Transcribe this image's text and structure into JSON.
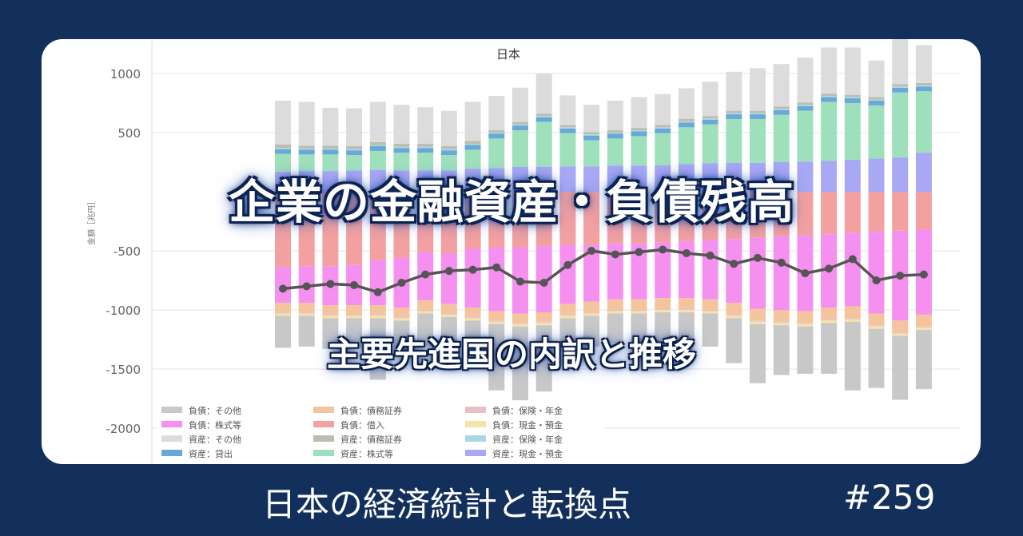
{
  "banner": {
    "main_title": "企業の金融資産・負債残高",
    "subtitle": "主要先進国の内訳と推移",
    "series_name": "日本の経済統計と転換点",
    "episode_number": "#259"
  },
  "colors": {
    "background": "#13305d",
    "card": "#ffffff",
    "line": "#555555",
    "series": {
      "負債：その他": "#c8c8c8",
      "負債：債務証券": "#f4c49e",
      "負債：保険・年金": "#e8c0c8",
      "負債：株式等": "#f590f0",
      "負債：借入": "#f2a0a0",
      "負債：現金・預金": "#f6e3a6",
      "資産：その他": "#dcdcdc",
      "資産：債務証券": "#bcbcb0",
      "資産：保険・年金": "#a8d8e8",
      "資産：貸出": "#6aa8d8",
      "資産：株式等": "#9fe0bc",
      "資産：現金・預金": "#a8a8f4"
    }
  },
  "chart_data": {
    "type": "bar",
    "stacked": true,
    "title": "日本",
    "ylabel": "金額［兆円］",
    "ylim": [
      -2000,
      1250
    ],
    "yticks": [
      1000,
      500,
      -500,
      -1000,
      -1500,
      -2000
    ],
    "grid": true,
    "legend_position": "bottom-left",
    "legend": [
      "負債：その他",
      "負債：債務証券",
      "負債：保険・年金",
      "負債：株式等",
      "負債：借入",
      "負債：現金・預金",
      "資産：その他",
      "資産：債務証券",
      "資産：保険・年金",
      "資産：貸出",
      "資産：株式等",
      "資産：現金・預金"
    ],
    "asset_series": [
      {
        "name": "資産：現金・預金",
        "values": [
          170,
          175,
          175,
          180,
          185,
          180,
          180,
          180,
          195,
          200,
          210,
          210,
          215,
          215,
          220,
          220,
          225,
          235,
          240,
          245,
          245,
          250,
          255,
          260,
          270,
          280,
          290,
          330
        ]
      },
      {
        "name": "資産：株式等",
        "values": [
          150,
          140,
          140,
          130,
          160,
          150,
          150,
          130,
          160,
          250,
          310,
          380,
          280,
          220,
          230,
          250,
          270,
          310,
          330,
          370,
          370,
          400,
          430,
          500,
          480,
          450,
          550,
          520
        ]
      },
      {
        "name": "資産：貸出",
        "values": [
          40,
          40,
          40,
          40,
          40,
          40,
          40,
          40,
          40,
          40,
          40,
          40,
          40,
          40,
          40,
          40,
          40,
          40,
          40,
          40,
          40,
          40,
          40,
          40,
          40,
          40,
          40,
          40
        ]
      },
      {
        "name": "資産：保険・年金",
        "values": [
          10,
          10,
          10,
          10,
          10,
          10,
          10,
          10,
          10,
          10,
          10,
          10,
          10,
          10,
          10,
          10,
          10,
          10,
          10,
          10,
          10,
          10,
          10,
          10,
          10,
          10,
          10,
          10
        ]
      },
      {
        "name": "資産：債務証券",
        "values": [
          30,
          25,
          25,
          25,
          25,
          25,
          25,
          25,
          25,
          20,
          20,
          20,
          20,
          20,
          20,
          20,
          20,
          20,
          20,
          20,
          20,
          20,
          20,
          20,
          20,
          20,
          20,
          20
        ]
      },
      {
        "name": "資産：その他",
        "values": [
          370,
          370,
          320,
          320,
          340,
          330,
          310,
          300,
          330,
          290,
          290,
          340,
          250,
          230,
          250,
          260,
          260,
          260,
          290,
          330,
          360,
          360,
          380,
          390,
          400,
          310,
          380,
          320
        ]
      }
    ],
    "liability_series": [
      {
        "name": "負債：借入",
        "values": [
          -640,
          -630,
          -630,
          -620,
          -580,
          -560,
          -510,
          -520,
          -480,
          -470,
          -470,
          -460,
          -450,
          -450,
          -440,
          -440,
          -430,
          -420,
          -410,
          -400,
          -390,
          -380,
          -370,
          -360,
          -350,
          -340,
          -330,
          -320
        ]
      },
      {
        "name": "負債：株式等",
        "values": [
          -300,
          -310,
          -330,
          -340,
          -380,
          -420,
          -410,
          -430,
          -500,
          -540,
          -560,
          -560,
          -500,
          -480,
          -470,
          -470,
          -470,
          -480,
          -500,
          -540,
          -600,
          -620,
          -640,
          -620,
          -620,
          -690,
          -760,
          -720
        ]
      },
      {
        "name": "負債：債務証券",
        "values": [
          -80,
          -80,
          -80,
          -80,
          -80,
          -80,
          -80,
          -80,
          -80,
          -80,
          -80,
          -80,
          -90,
          -90,
          -90,
          -90,
          -90,
          -90,
          -90,
          -100,
          -100,
          -100,
          -100,
          -100,
          -100,
          -100,
          -100,
          -100
        ]
      },
      {
        "name": "負債：保険・年金",
        "values": [
          -10,
          -10,
          -10,
          -10,
          -10,
          -10,
          -10,
          -10,
          -10,
          -10,
          -10,
          -10,
          -10,
          -10,
          -10,
          -10,
          -10,
          -10,
          -10,
          -10,
          -10,
          -10,
          -10,
          -10,
          -10,
          -10,
          -10,
          -10
        ]
      },
      {
        "name": "負債：現金・預金",
        "values": [
          -20,
          -20,
          -20,
          -20,
          -20,
          -20,
          -20,
          -20,
          -20,
          -20,
          -20,
          -20,
          -20,
          -20,
          -20,
          -20,
          -20,
          -20,
          -20,
          -20,
          -20,
          -20,
          -20,
          -20,
          -20,
          -20,
          -20,
          -20
        ]
      },
      {
        "name": "負債：その他",
        "values": [
          -270,
          -260,
          -260,
          -250,
          -520,
          -300,
          -280,
          -270,
          -300,
          -560,
          -630,
          -560,
          -280,
          -260,
          -250,
          -250,
          -260,
          -270,
          -280,
          -380,
          -500,
          -420,
          -400,
          -430,
          -580,
          -500,
          -540,
          -500
        ]
      }
    ],
    "line_series": {
      "values": [
        -820,
        -800,
        -780,
        -790,
        -850,
        -770,
        -700,
        -670,
        -660,
        -640,
        -760,
        -770,
        -620,
        -500,
        -530,
        -510,
        -490,
        -520,
        -540,
        -610,
        -560,
        -600,
        -690,
        -650,
        -570,
        -750,
        -710,
        -700
      ]
    }
  }
}
